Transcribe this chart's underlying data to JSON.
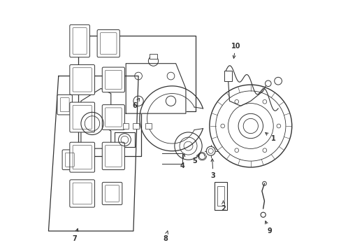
{
  "bg_color": "#ffffff",
  "line_color": "#333333",
  "figsize": [
    4.89,
    3.6
  ],
  "dpi": 100
}
